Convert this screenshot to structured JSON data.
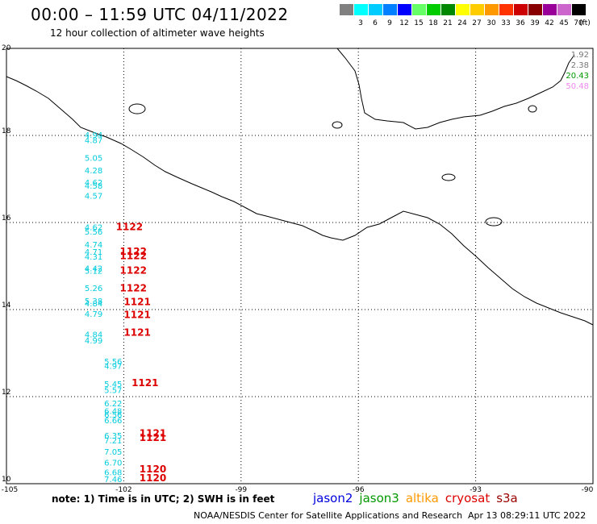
{
  "header": {
    "title": "00:00 – 11:59 UTC 04/11/2022",
    "subtitle": "12 hour collection of altimeter wave heights"
  },
  "color_scale": {
    "unit": "(ft)",
    "bins": [
      {
        "label": "",
        "color": "#808080"
      },
      {
        "label": "3",
        "color": "#00ffff"
      },
      {
        "label": "6",
        "color": "#00ccff"
      },
      {
        "label": "9",
        "color": "#0080ff"
      },
      {
        "label": "12",
        "color": "#0000ff"
      },
      {
        "label": "15",
        "color": "#66ff66"
      },
      {
        "label": "18",
        "color": "#00cc00"
      },
      {
        "label": "21",
        "color": "#008800"
      },
      {
        "label": "24",
        "color": "#ffff00"
      },
      {
        "label": "27",
        "color": "#ffcc00"
      },
      {
        "label": "30",
        "color": "#ff9900"
      },
      {
        "label": "33",
        "color": "#ff3300"
      },
      {
        "label": "36",
        "color": "#cc0000"
      },
      {
        "label": "39",
        "color": "#880000"
      },
      {
        "label": "42",
        "color": "#990099"
      },
      {
        "label": "45",
        "color": "#cc66cc"
      },
      {
        "label": "70",
        "color": "#000000"
      }
    ]
  },
  "axes": {
    "lon_ticks": [
      "-105",
      "-102",
      "-99",
      "-96",
      "-93",
      "-90"
    ],
    "lat_ticks": [
      "20",
      "18",
      "16",
      "14",
      "12",
      "10"
    ]
  },
  "satellite_stats": [
    {
      "value": "1.92",
      "color": "#777777"
    },
    {
      "value": "2.38",
      "color": "#777777"
    },
    {
      "value": "20.43",
      "color": "#009900"
    },
    {
      "value": "50.48",
      "color": "#ee88ee"
    }
  ],
  "observations": [
    {
      "lat": 17.94,
      "lon": -103.0,
      "swh": "4.94"
    },
    {
      "lat": 17.82,
      "lon": -103.0,
      "swh": "4.87"
    },
    {
      "lat": 17.42,
      "lon": -103.0,
      "swh": "5.05"
    },
    {
      "lat": 17.13,
      "lon": -103.0,
      "swh": "4.28"
    },
    {
      "lat": 16.85,
      "lon": -103.0,
      "swh": "4.62"
    },
    {
      "lat": 16.78,
      "lon": -103.0,
      "swh": "4.58"
    },
    {
      "lat": 16.55,
      "lon": -103.0,
      "swh": "4.57"
    },
    {
      "lat": 15.82,
      "lon": -103.0,
      "swh": "4.62"
    },
    {
      "lat": 15.72,
      "lon": -103.0,
      "swh": "5.56"
    },
    {
      "lat": 15.43,
      "lon": -103.0,
      "swh": "4.74"
    },
    {
      "lat": 15.26,
      "lon": -103.0,
      "swh": "4.71"
    },
    {
      "lat": 15.15,
      "lon": -103.0,
      "swh": "4.31"
    },
    {
      "lat": 14.88,
      "lon": -103.0,
      "swh": "4.42"
    },
    {
      "lat": 14.82,
      "lon": -103.0,
      "swh": "5.12"
    },
    {
      "lat": 14.43,
      "lon": -103.0,
      "swh": "5.26"
    },
    {
      "lat": 14.13,
      "lon": -103.0,
      "swh": "5.38"
    },
    {
      "lat": 14.07,
      "lon": -103.0,
      "swh": "4.84"
    },
    {
      "lat": 13.83,
      "lon": -103.0,
      "swh": "4.79"
    },
    {
      "lat": 13.36,
      "lon": -103.0,
      "swh": "4.84"
    },
    {
      "lat": 13.22,
      "lon": -103.0,
      "swh": "4.99"
    },
    {
      "lat": 12.74,
      "lon": -102.5,
      "swh": "5.56"
    },
    {
      "lat": 12.64,
      "lon": -102.5,
      "swh": "4.97"
    },
    {
      "lat": 12.22,
      "lon": -102.5,
      "swh": "5.45"
    },
    {
      "lat": 12.08,
      "lon": -102.5,
      "swh": "5.57"
    },
    {
      "lat": 11.78,
      "lon": -102.5,
      "swh": "6.22"
    },
    {
      "lat": 11.6,
      "lon": -102.5,
      "swh": "6.48"
    },
    {
      "lat": 11.52,
      "lon": -102.5,
      "swh": "6.56"
    },
    {
      "lat": 11.39,
      "lon": -102.5,
      "swh": "6.66"
    },
    {
      "lat": 11.04,
      "lon": -102.5,
      "swh": "6.35"
    },
    {
      "lat": 10.93,
      "lon": -102.5,
      "swh": "7.21"
    },
    {
      "lat": 10.67,
      "lon": -102.5,
      "swh": "7.05"
    },
    {
      "lat": 10.42,
      "lon": -102.5,
      "swh": "6.70"
    },
    {
      "lat": 10.19,
      "lon": -102.5,
      "swh": "6.68"
    },
    {
      "lat": 10.04,
      "lon": -102.5,
      "swh": "7.46"
    }
  ],
  "pass_times": [
    {
      "lat": 15.82,
      "lon": -102.2,
      "time": "1122"
    },
    {
      "lat": 15.26,
      "lon": -102.1,
      "time": "1122"
    },
    {
      "lat": 15.16,
      "lon": -102.1,
      "time": "1122"
    },
    {
      "lat": 14.82,
      "lon": -102.1,
      "time": "1122"
    },
    {
      "lat": 14.42,
      "lon": -102.1,
      "time": "1122"
    },
    {
      "lat": 14.1,
      "lon": -102.0,
      "time": "1121"
    },
    {
      "lat": 13.81,
      "lon": -102.0,
      "time": "1121"
    },
    {
      "lat": 13.4,
      "lon": -102.0,
      "time": "1121"
    },
    {
      "lat": 12.24,
      "lon": -101.8,
      "time": "1121"
    },
    {
      "lat": 11.08,
      "lon": -101.6,
      "time": "1121"
    },
    {
      "lat": 10.98,
      "lon": -101.6,
      "time": "1121"
    },
    {
      "lat": 10.26,
      "lon": -101.6,
      "time": "1120"
    },
    {
      "lat": 10.06,
      "lon": -101.6,
      "time": "1120"
    }
  ],
  "footer": {
    "note": "note: 1) Time is in UTC; 2) SWH is in feet",
    "satellites": [
      {
        "name": "jason2",
        "color": "#0000dd"
      },
      {
        "name": "jason3",
        "color": "#009900"
      },
      {
        "name": "altika",
        "color": "#ff9900"
      },
      {
        "name": "cryosat",
        "color": "#dd0000"
      },
      {
        "name": "s3a",
        "color": "#990000"
      }
    ],
    "credit": "NOAA/NESDIS Center for Satellite Applications and Research",
    "generated": "Apr 13 08:29:11 UTC 2022"
  }
}
